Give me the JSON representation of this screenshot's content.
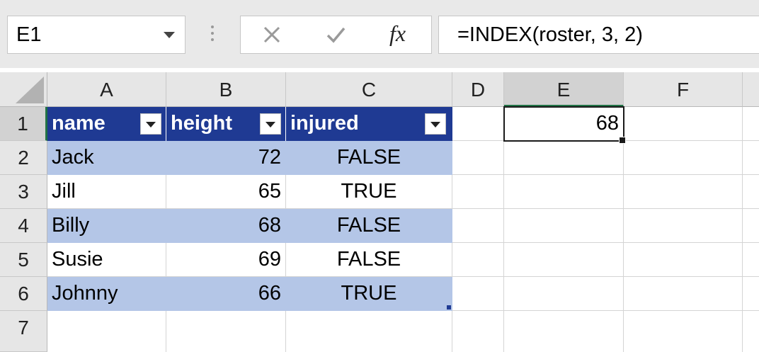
{
  "name_box": {
    "value": "E1"
  },
  "formula_bar": {
    "cancel_icon": "close-icon",
    "enter_icon": "check-icon",
    "fx_label": "fx",
    "formula": "=INDEX(roster, 3, 2)"
  },
  "columns": [
    "A",
    "B",
    "C",
    "D",
    "E",
    "F"
  ],
  "rows": [
    "1",
    "2",
    "3",
    "4",
    "5",
    "6",
    "7"
  ],
  "table": {
    "name": "roster",
    "headers": [
      "name",
      "height",
      "injured"
    ],
    "rows": [
      [
        "Jack",
        "72",
        "FALSE"
      ],
      [
        "Jill",
        "65",
        "TRUE"
      ],
      [
        "Billy",
        "68",
        "FALSE"
      ],
      [
        "Susie",
        "69",
        "FALSE"
      ],
      [
        "Johnny",
        "66",
        "TRUE"
      ]
    ]
  },
  "active_cell": {
    "ref": "E1",
    "value": "68"
  },
  "colors": {
    "table_header": "#1f3a93",
    "band": "#b4c6e7",
    "selection": "#217346"
  }
}
